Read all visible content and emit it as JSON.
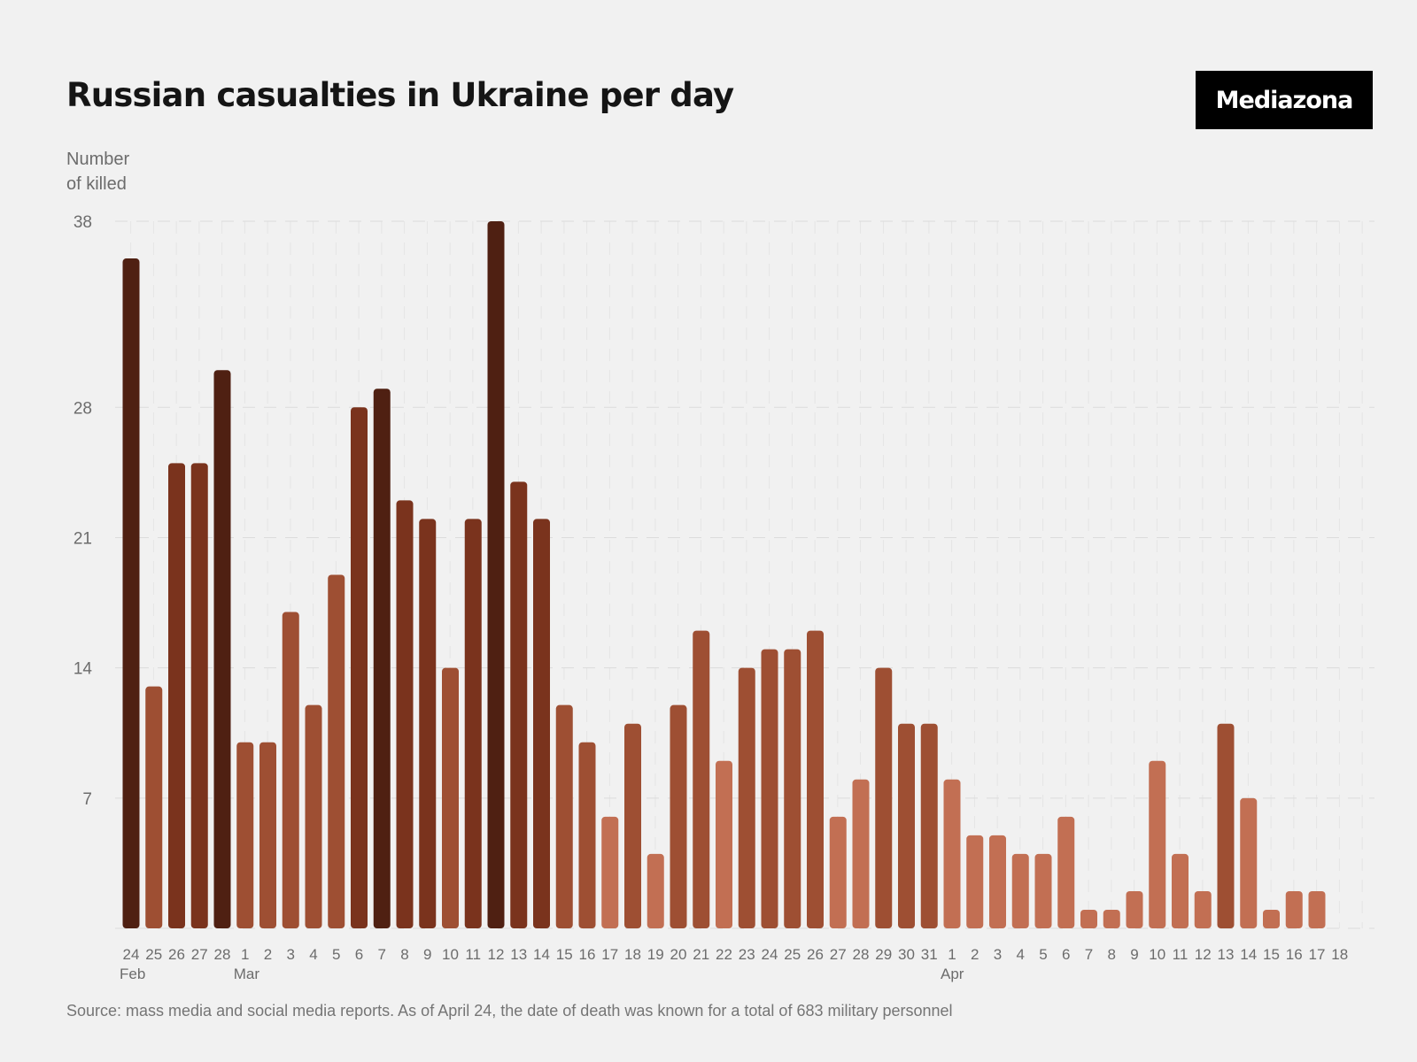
{
  "header": {
    "title": "Russian casualties in Ukraine per day",
    "logo_text": "Mediazona"
  },
  "footer": {
    "source": "Source: mass media and social media reports. As of April 24, the date of death was known for a total of 683 military personnel"
  },
  "colors": {
    "background": "#f1f1f1",
    "darkest": "#4f2012",
    "dark": "#7a331d",
    "medium": "#9e4f33",
    "light": "#c26f53",
    "grid": "#dcdcdc"
  },
  "chart_data": {
    "type": "bar",
    "title": "Russian casualties in Ukraine per day",
    "ylabel": "Number\nof killed",
    "xlabel": "",
    "ylim": [
      0,
      38
    ],
    "yticks": [
      7,
      14,
      21,
      28,
      38
    ],
    "grid": true,
    "categories": [
      "24",
      "25",
      "26",
      "27",
      "28",
      "1",
      "2",
      "3",
      "4",
      "5",
      "6",
      "7",
      "8",
      "9",
      "10",
      "11",
      "12",
      "13",
      "14",
      "15",
      "16",
      "17",
      "18",
      "19",
      "20",
      "21",
      "22",
      "23",
      "24",
      "25",
      "26",
      "27",
      "28",
      "29",
      "30",
      "31",
      "1",
      "2",
      "3",
      "4",
      "5",
      "6",
      "7",
      "8",
      "9",
      "10",
      "11",
      "12",
      "13",
      "14",
      "15",
      "16",
      "17",
      "18"
    ],
    "month_labels": [
      {
        "index": 0,
        "label": "Feb"
      },
      {
        "index": 5,
        "label": "Mar"
      },
      {
        "index": 36,
        "label": "Apr"
      }
    ],
    "values": [
      36,
      13,
      25,
      25,
      30,
      10,
      10,
      17,
      12,
      19,
      28,
      29,
      23,
      22,
      14,
      22,
      38,
      24,
      22,
      12,
      10,
      6,
      11,
      4,
      12,
      16,
      9,
      14,
      15,
      15,
      16,
      6,
      8,
      14,
      11,
      11,
      8,
      5,
      5,
      4,
      4,
      6,
      1,
      1,
      2,
      9,
      4,
      2,
      11,
      7,
      1,
      2,
      2,
      null
    ]
  }
}
